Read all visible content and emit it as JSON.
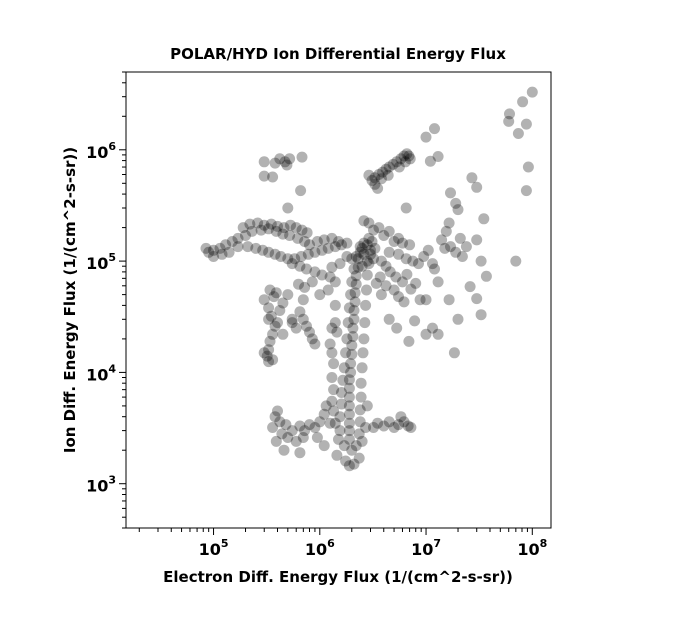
{
  "chart_data": {
    "type": "scatter",
    "title": "POLAR/HYD  Ion Differential Energy Flux",
    "xlabel": "Electron Diff. Energy Flux (1/(cm^2-s-sr))",
    "ylabel": "Ion Diff. Energy Flux (1/(cm^2-s-sr))",
    "x_scale": "log",
    "y_scale": "log",
    "xlim": [
      15000,
      150000000
    ],
    "ylim": [
      400,
      5000000
    ],
    "grid": false,
    "marker_color": "#000000",
    "marker_opacity": 0.3,
    "x_ticks": [
      {
        "base": "10",
        "exp": "5",
        "value": 100000
      },
      {
        "base": "10",
        "exp": "6",
        "value": 1000000
      },
      {
        "base": "10",
        "exp": "7",
        "value": 10000000
      },
      {
        "base": "10",
        "exp": "8",
        "value": 100000000
      }
    ],
    "y_ticks": [
      {
        "base": "10",
        "exp": "3",
        "value": 1000
      },
      {
        "base": "10",
        "exp": "4",
        "value": 10000
      },
      {
        "base": "10",
        "exp": "5",
        "value": 100000
      },
      {
        "base": "10",
        "exp": "6",
        "value": 1000000
      }
    ],
    "points": [
      [
        1900000.0,
        2500.0
      ],
      [
        1900000.0,
        3000.0
      ],
      [
        1900000.0,
        3500.0
      ],
      [
        1900000.0,
        4200.0
      ],
      [
        1900000.0,
        5000.0
      ],
      [
        1900000.0,
        6000.0
      ],
      [
        1900000.0,
        7200.0
      ],
      [
        1900000.0,
        8600.0
      ],
      [
        1950000.0,
        10000.0
      ],
      [
        1950000.0,
        12000.0
      ],
      [
        2000000.0,
        14500.0
      ],
      [
        2000000.0,
        17500.0
      ],
      [
        2050000.0,
        21000.0
      ],
      [
        2050000.0,
        25000.0
      ],
      [
        2100000.0,
        30000.0
      ],
      [
        2100000.0,
        36000.0
      ],
      [
        2150000.0,
        43000.0
      ],
      [
        2150000.0,
        52000.0
      ],
      [
        2200000.0,
        62000.0
      ],
      [
        2200000.0,
        74000.0
      ],
      [
        2300000.0,
        88000.0
      ],
      [
        2300000.0,
        105000.0
      ],
      [
        2400000.0,
        120000.0
      ],
      [
        2500000.0,
        130000.0
      ],
      [
        1550000.0,
        3000.0
      ],
      [
        1550000.0,
        4000.0
      ],
      [
        1600000.0,
        5200.0
      ],
      [
        1600000.0,
        6600.0
      ],
      [
        1650000.0,
        8500.0
      ],
      [
        1700000.0,
        11000.0
      ],
      [
        1750000.0,
        15000.0
      ],
      [
        1800000.0,
        20000.0
      ],
      [
        1850000.0,
        28000.0
      ],
      [
        1900000.0,
        38000.0
      ],
      [
        1950000.0,
        50000.0
      ],
      [
        2000000.0,
        65000.0
      ],
      [
        2100000.0,
        85000.0
      ],
      [
        2350000.0,
        2800.0
      ],
      [
        2400000.0,
        3600.0
      ],
      [
        2400000.0,
        4600.0
      ],
      [
        2450000.0,
        6000.0
      ],
      [
        2450000.0,
        8000.0
      ],
      [
        2500000.0,
        11000.0
      ],
      [
        2550000.0,
        15000.0
      ],
      [
        2600000.0,
        20000.0
      ],
      [
        2650000.0,
        28000.0
      ],
      [
        2700000.0,
        40000.0
      ],
      [
        2750000.0,
        55000.0
      ],
      [
        2800000.0,
        75000.0
      ],
      [
        2900000.0,
        95000.0
      ],
      [
        3000000.0,
        115000.0
      ],
      [
        1700000.0,
        2200.0
      ],
      [
        2000000.0,
        2000.0
      ],
      [
        2200000.0,
        2200.0
      ],
      [
        2500000.0,
        2400.0
      ],
      [
        1500000.0,
        2500.0
      ],
      [
        1400000.0,
        3500.0
      ],
      [
        2700000.0,
        3200.0
      ],
      [
        2800000.0,
        5000.0
      ],
      [
        1450000.0,
        1800.0
      ],
      [
        1750000.0,
        1600.0
      ],
      [
        1900000.0,
        1450.0
      ],
      [
        2100000.0,
        1500.0
      ],
      [
        2350000.0,
        1700.0
      ],
      [
        2200000.0,
        110000.0
      ],
      [
        2600000.0,
        115000.0
      ],
      [
        3000000.0,
        125000.0
      ],
      [
        2000000.0,
        105000.0
      ],
      [
        1800000.0,
        110000.0
      ],
      [
        2500000.0,
        90000.0
      ],
      [
        2800000.0,
        100000.0
      ],
      [
        3200000.0,
        105000.0
      ],
      [
        2400000.0,
        135000.0
      ],
      [
        2800000.0,
        140000.0
      ],
      [
        3100000.0,
        150000.0
      ],
      [
        3300000.0,
        130000.0
      ],
      [
        2900000.0,
        160000.0
      ],
      [
        2600000.0,
        145000.0
      ],
      [
        190000.0,
        200000.0
      ],
      [
        220000.0,
        215000.0
      ],
      [
        260000.0,
        220000.0
      ],
      [
        300000.0,
        210000.0
      ],
      [
        350000.0,
        215000.0
      ],
      [
        400000.0,
        205000.0
      ],
      [
        460000.0,
        200000.0
      ],
      [
        530000.0,
        210000.0
      ],
      [
        600000.0,
        200000.0
      ],
      [
        680000.0,
        190000.0
      ],
      [
        760000.0,
        180000.0
      ],
      [
        200000.0,
        170000.0
      ],
      [
        170000.0,
        160000.0
      ],
      [
        150000.0,
        150000.0
      ],
      [
        130000.0,
        140000.0
      ],
      [
        115000.0,
        130000.0
      ],
      [
        100000.0,
        125000.0
      ],
      [
        90000.0,
        120000.0
      ],
      [
        85000.0,
        130000.0
      ],
      [
        100000.0,
        110000.0
      ],
      [
        120000.0,
        115000.0
      ],
      [
        140000.0,
        120000.0
      ],
      [
        170000.0,
        135000.0
      ],
      [
        230000.0,
        185000.0
      ],
      [
        280000.0,
        190000.0
      ],
      [
        330000.0,
        195000.0
      ],
      [
        390000.0,
        185000.0
      ],
      [
        450000.0,
        175000.0
      ],
      [
        520000.0,
        170000.0
      ],
      [
        620000.0,
        160000.0
      ],
      [
        720000.0,
        150000.0
      ],
      [
        210000.0,
        135000.0
      ],
      [
        250000.0,
        130000.0
      ],
      [
        290000.0,
        125000.0
      ],
      [
        330000.0,
        120000.0
      ],
      [
        380000.0,
        115000.0
      ],
      [
        430000.0,
        110000.0
      ],
      [
        500000.0,
        105000.0
      ],
      [
        580000.0,
        105000.0
      ],
      [
        670000.0,
        110000.0
      ],
      [
        780000.0,
        115000.0
      ],
      [
        900000.0,
        120000.0
      ],
      [
        1050000.0,
        125000.0
      ],
      [
        1200000.0,
        130000.0
      ],
      [
        1400000.0,
        135000.0
      ],
      [
        1600000.0,
        140000.0
      ],
      [
        1800000.0,
        145000.0
      ],
      [
        550000.0,
        95000.0
      ],
      [
        650000.0,
        90000.0
      ],
      [
        750000.0,
        85000.0
      ],
      [
        900000.0,
        80000.0
      ],
      [
        1050000.0,
        75000.0
      ],
      [
        1250000.0,
        72000.0
      ],
      [
        1400000.0,
        65000.0
      ],
      [
        1200000.0,
        55000.0
      ],
      [
        850000.0,
        65000.0
      ],
      [
        720000.0,
        58000.0
      ],
      [
        630000.0,
        62000.0
      ],
      [
        1000000.0,
        50000.0
      ],
      [
        1300000.0,
        88000.0
      ],
      [
        1550000.0,
        95000.0
      ],
      [
        800000.0,
        140000.0
      ],
      [
        950000.0,
        150000.0
      ],
      [
        1100000.0,
        155000.0
      ],
      [
        1300000.0,
        160000.0
      ],
      [
        1500000.0,
        150000.0
      ],
      [
        300000.0,
        45000.0
      ],
      [
        330000.0,
        38000.0
      ],
      [
        350000.0,
        32000.0
      ],
      [
        380000.0,
        26000.0
      ],
      [
        360000.0,
        22000.0
      ],
      [
        340000.0,
        19000.0
      ],
      [
        330000.0,
        16000.0
      ],
      [
        320000.0,
        14000.0
      ],
      [
        330000.0,
        12500.0
      ],
      [
        360000.0,
        13000.0
      ],
      [
        300000.0,
        15000.0
      ],
      [
        420000.0,
        36000.0
      ],
      [
        450000.0,
        42000.0
      ],
      [
        500000.0,
        50000.0
      ],
      [
        390000.0,
        52000.0
      ],
      [
        340000.0,
        55000.0
      ],
      [
        650000.0,
        35000.0
      ],
      [
        700000.0,
        30000.0
      ],
      [
        750000.0,
        26000.0
      ],
      [
        800000.0,
        23000.0
      ],
      [
        850000.0,
        20000.0
      ],
      [
        900000.0,
        18000.0
      ],
      [
        550000.0,
        30000.0
      ],
      [
        600000.0,
        25000.0
      ],
      [
        700000.0,
        45000.0
      ],
      [
        400000.0,
        28000.0
      ],
      [
        450000.0,
        22000.0
      ],
      [
        550000.0,
        28000.0
      ],
      [
        370000.0,
        48000.0
      ],
      [
        330000.0,
        30000.0
      ],
      [
        1250000.0,
        18000.0
      ],
      [
        1300000.0,
        15000.0
      ],
      [
        1350000.0,
        12000.0
      ],
      [
        1300000.0,
        9000.0
      ],
      [
        1350000.0,
        7000.0
      ],
      [
        1300000.0,
        5500.0
      ],
      [
        1350000.0,
        4500.0
      ],
      [
        1250000.0,
        3500.0
      ],
      [
        1400000.0,
        28000.0
      ],
      [
        1450000.0,
        23000.0
      ],
      [
        1300000.0,
        25000.0
      ],
      [
        1400000.0,
        40000.0
      ],
      [
        1150000.0,
        5000.0
      ],
      [
        1100000.0,
        4200.0
      ],
      [
        1000000.0,
        3600.0
      ],
      [
        900000.0,
        3200.0
      ],
      [
        800000.0,
        3400.0
      ],
      [
        720000.0,
        3000.0
      ],
      [
        650000.0,
        3300.0
      ],
      [
        550000.0,
        3000.0
      ],
      [
        480000.0,
        3400.0
      ],
      [
        420000.0,
        3600.0
      ],
      [
        380000.0,
        4000.0
      ],
      [
        400000.0,
        4500.0
      ],
      [
        360000.0,
        3200.0
      ],
      [
        440000.0,
        2800.0
      ],
      [
        500000.0,
        2600.0
      ],
      [
        600000.0,
        2400.0
      ],
      [
        700000.0,
        2600.0
      ],
      [
        1100000.0,
        2200.0
      ],
      [
        950000.0,
        2600.0
      ],
      [
        390000.0,
        2400.0
      ],
      [
        460000.0,
        2000.0
      ],
      [
        650000.0,
        1900.0
      ],
      [
        3200000.0,
        3200.0
      ],
      [
        3500000.0,
        3500.0
      ],
      [
        4000000.0,
        3300.0
      ],
      [
        4500000.0,
        3600.0
      ],
      [
        5000000.0,
        3200.0
      ],
      [
        5500000.0,
        3400.0
      ],
      [
        6200000.0,
        3600.0
      ],
      [
        5800000.0,
        4000.0
      ],
      [
        6800000.0,
        3300.0
      ],
      [
        7200000.0,
        3200.0
      ],
      [
        3100000.0,
        530000.0
      ],
      [
        3300000.0,
        560000.0
      ],
      [
        3600000.0,
        600000.0
      ],
      [
        3900000.0,
        630000.0
      ],
      [
        4200000.0,
        670000.0
      ],
      [
        4500000.0,
        700000.0
      ],
      [
        4900000.0,
        740000.0
      ],
      [
        5300000.0,
        780000.0
      ],
      [
        5800000.0,
        830000.0
      ],
      [
        6200000.0,
        880000.0
      ],
      [
        6600000.0,
        920000.0
      ],
      [
        6900000.0,
        880000.0
      ],
      [
        7100000.0,
        830000.0
      ],
      [
        6400000.0,
        780000.0
      ],
      [
        3800000.0,
        550000.0
      ],
      [
        4400000.0,
        590000.0
      ],
      [
        5600000.0,
        700000.0
      ],
      [
        3300000.0,
        490000.0
      ],
      [
        2900000.0,
        590000.0
      ],
      [
        3500000.0,
        450000.0
      ],
      [
        300000.0,
        780000.0
      ],
      [
        300000.0,
        580000.0
      ],
      [
        360000.0,
        570000.0
      ],
      [
        380000.0,
        760000.0
      ],
      [
        420000.0,
        830000.0
      ],
      [
        470000.0,
        780000.0
      ],
      [
        520000.0,
        830000.0
      ],
      [
        490000.0,
        730000.0
      ],
      [
        680000.0,
        860000.0
      ],
      [
        660000.0,
        430000.0
      ],
      [
        2600000.0,
        230000.0
      ],
      [
        2900000.0,
        220000.0
      ],
      [
        3600000.0,
        200000.0
      ],
      [
        4500000.0,
        185000.0
      ],
      [
        5500000.0,
        160000.0
      ],
      [
        3200000.0,
        190000.0
      ],
      [
        4000000.0,
        170000.0
      ],
      [
        5000000.0,
        150000.0
      ],
      [
        6000000.0,
        145000.0
      ],
      [
        7000000.0,
        140000.0
      ],
      [
        4500000.0,
        120000.0
      ],
      [
        5500000.0,
        115000.0
      ],
      [
        6500000.0,
        105000.0
      ],
      [
        7500000.0,
        100000.0
      ],
      [
        8500000.0,
        95000.0
      ],
      [
        9500000.0,
        110000.0
      ],
      [
        10500000.0,
        125000.0
      ],
      [
        11500000.0,
        95000.0
      ],
      [
        3800000.0,
        100000.0
      ],
      [
        4200000.0,
        90000.0
      ],
      [
        4600000.0,
        80000.0
      ],
      [
        5200000.0,
        72000.0
      ],
      [
        6000000.0,
        65000.0
      ],
      [
        5000000.0,
        55000.0
      ],
      [
        5500000.0,
        48000.0
      ],
      [
        6200000.0,
        43000.0
      ],
      [
        4200000.0,
        60000.0
      ],
      [
        3700000.0,
        72000.0
      ],
      [
        3400000.0,
        63000.0
      ],
      [
        3800000.0,
        50000.0
      ],
      [
        7200000.0,
        56000.0
      ],
      [
        6600000.0,
        76000.0
      ],
      [
        8000000.0,
        63000.0
      ],
      [
        8800000.0,
        45000.0
      ],
      [
        10000000.0,
        45000.0
      ],
      [
        7800000.0,
        29000.0
      ],
      [
        10000000.0,
        22000.0
      ],
      [
        6900000.0,
        19000.0
      ],
      [
        5300000.0,
        25000.0
      ],
      [
        4500000.0,
        30000.0
      ],
      [
        12000000.0,
        85000.0
      ],
      [
        13000000.0,
        65000.0
      ],
      [
        15000000.0,
        130000.0
      ],
      [
        14000000.0,
        155000.0
      ],
      [
        15500000.0,
        185000.0
      ],
      [
        17000000.0,
        135000.0
      ],
      [
        19000000.0,
        120000.0
      ],
      [
        21000000.0,
        160000.0
      ],
      [
        16500000.0,
        220000.0
      ],
      [
        20000000.0,
        290000.0
      ],
      [
        22000000.0,
        110000.0
      ],
      [
        24000000.0,
        135000.0
      ],
      [
        26000000.0,
        59000.0
      ],
      [
        16500000.0,
        45000.0
      ],
      [
        20000000.0,
        30000.0
      ],
      [
        18500000.0,
        15000.0
      ],
      [
        35000000.0,
        240000.0
      ],
      [
        30000000.0,
        155000.0
      ],
      [
        33000000.0,
        100000.0
      ],
      [
        37000000.0,
        73000.0
      ],
      [
        30000000.0,
        46000.0
      ],
      [
        33000000.0,
        33000.0
      ],
      [
        13000000.0,
        22000.0
      ],
      [
        11500000.0,
        25000.0
      ],
      [
        70000000.0,
        100000.0
      ],
      [
        27000000.0,
        560000.0
      ],
      [
        30000000.0,
        460000.0
      ],
      [
        17000000.0,
        410000.0
      ],
      [
        19000000.0,
        330000.0
      ],
      [
        13000000.0,
        870000.0
      ],
      [
        11000000.0,
        790000.0
      ],
      [
        6500000.0,
        300000.0
      ],
      [
        10000000.0,
        1300000.0
      ],
      [
        12000000.0,
        1550000.0
      ],
      [
        74000000.0,
        1400000.0
      ],
      [
        60000000.0,
        1800000.0
      ],
      [
        61000000.0,
        2100000.0
      ],
      [
        88000000.0,
        1700000.0
      ],
      [
        81000000.0,
        2700000.0
      ],
      [
        100000000.0,
        3300000.0
      ],
      [
        92000000.0,
        700000.0
      ],
      [
        88000000.0,
        430000.0
      ],
      [
        500000.0,
        300000.0
      ]
    ]
  }
}
